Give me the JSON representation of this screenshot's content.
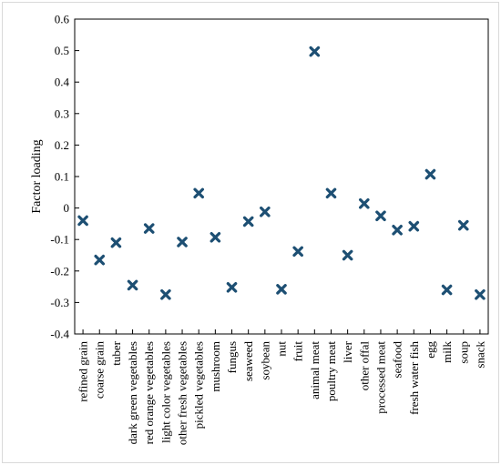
{
  "chart_data": {
    "type": "scatter",
    "ylabel": "Factor loading",
    "xlabel": "",
    "ylim": [
      -0.4,
      0.6
    ],
    "yticks": [
      "0.6",
      "0.5",
      "0.4",
      "0.3",
      "0.2",
      "0.1",
      "0",
      "-0.1",
      "-0.2",
      "-0.3",
      "-0.4"
    ],
    "categories": [
      "refined grain",
      "coarse grain",
      "tuber",
      "dark green vegetables",
      "red orange vegetables",
      "light color  vegetables",
      "other fresh vegetables",
      "pickled vegetables",
      "mushroom",
      "fungus",
      "seaweed",
      "soybean",
      "nut",
      "fruit",
      "animal meat",
      "poultry meat",
      "liver",
      "other offal",
      "processed meat",
      "seafood",
      "fresh water fish",
      "egg",
      "milk",
      "soup",
      "snack"
    ],
    "values": [
      -0.04,
      -0.165,
      -0.11,
      -0.245,
      -0.065,
      -0.275,
      -0.108,
      0.047,
      -0.093,
      -0.252,
      -0.043,
      -0.012,
      -0.258,
      -0.138,
      0.497,
      0.047,
      -0.15,
      0.014,
      -0.025,
      -0.07,
      -0.058,
      0.107,
      -0.26,
      -0.055,
      -0.275
    ],
    "marker": "x",
    "marker_color": "#1d4f73",
    "grid": false
  }
}
